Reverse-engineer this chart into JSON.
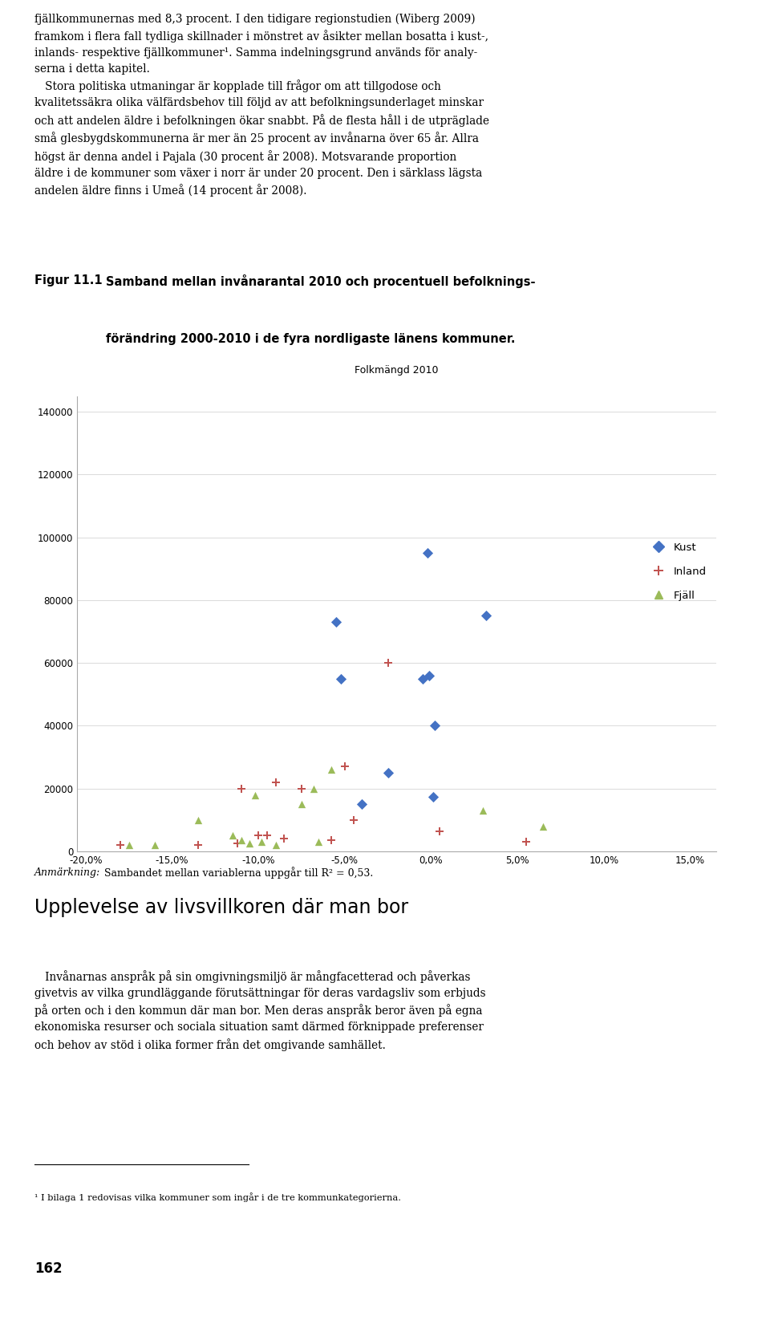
{
  "title_chart": "Folkmängd 2010",
  "fig_label": "Figur 11.1",
  "fig_caption_line1": "Samband mellan invånarantal 2010 och procentuell befolknings-",
  "fig_caption_line2": "förändring 2000-2010 i de fyra nordligaste länens kommuner.",
  "annotation_italic": "Anmärkning:",
  "annotation_normal": " Sambandet mellan variablerna uppgår till R² = 0,53.",
  "upper_text_lines": [
    "fjällkommunernas med 8,3 procent. I den tidigare regionstudien (Wiberg 2009)",
    "framkom i flera fall tydliga skillnader i mönstret av åsikter mellan bosatta i kust-,",
    "inlands- respektive fjällkommuner¹. Samma indelningsgrund används för analy-",
    "serna i detta kapitel.",
    "   Stora politiska utmaningar är kopplade till frågor om att tillgodose och",
    "kvalitetssäkra olika välfärdsbehov till följd av att befolkningsunderlaget minskar",
    "och att andelen äldre i befolkningen ökar snabbt. På de flesta håll i de utpräglade",
    "små glesbygdskommunerna är mer än 25 procent av invånarna över 65 år. Allra",
    "högst är denna andel i Pajala (30 procent år 2008). Motsvarande proportion",
    "äldre i de kommuner som växer i norr är under 20 procent. Den i särklass lägsta",
    "andelen äldre finns i Umeå (14 procent år 2008)."
  ],
  "bottom_heading": "Upplevelse av livsvillkoren där man bor",
  "bottom_body_lines": [
    "   Invånarnas anspråk på sin omgivningsmiljö är mångfacetterad och påverkas",
    "givetvis av vilka grundläggande förutsättningar för deras vardagsliv som erbjuds",
    "på orten och i den kommun där man bor. Men deras anspråk beror även på egna",
    "ekonomiska resurser och sociala situation samt därmed förknippade preferenser",
    "och behov av stöd i olika former från det omgivande samhället."
  ],
  "footnote": "¹ I bilaga 1 redovisas vilka kommuner som ingår i de tre kommunkategorierna.",
  "page_number": "162",
  "kust_x": [
    -5.5,
    -5.2,
    -2.5,
    -0.5,
    -0.2,
    0.1,
    0.2,
    3.2,
    -4.0,
    -0.1
  ],
  "kust_y": [
    73000,
    55000,
    25000,
    55000,
    95000,
    17500,
    40000,
    75000,
    15000,
    56000
  ],
  "inland_x": [
    -18.0,
    -13.5,
    -11.2,
    -11.0,
    -10.0,
    -9.5,
    -9.0,
    -8.5,
    -7.5,
    -5.8,
    -5.0,
    -4.5,
    -2.5,
    0.5,
    5.5
  ],
  "inland_y": [
    2000,
    2000,
    2500,
    20000,
    5000,
    5000,
    22000,
    4000,
    20000,
    3500,
    27000,
    10000,
    60000,
    6500,
    3000
  ],
  "fjall_x": [
    -17.5,
    -16.0,
    -13.5,
    -11.5,
    -11.0,
    -10.5,
    -10.2,
    -9.8,
    -9.0,
    -7.5,
    -6.8,
    -6.5,
    -5.8,
    3.0,
    6.5
  ],
  "fjall_y": [
    2000,
    2000,
    10000,
    5000,
    3500,
    2500,
    18000,
    3000,
    2000,
    15000,
    20000,
    3000,
    26000,
    13000,
    8000
  ],
  "kust_color": "#4472C4",
  "inland_color": "#C0504D",
  "fjall_color": "#9BBB59",
  "xlim": [
    -20.5,
    16.5
  ],
  "ylim": [
    0,
    145000
  ],
  "yticks": [
    0,
    20000,
    40000,
    60000,
    80000,
    100000,
    120000,
    140000
  ],
  "xticks": [
    -20,
    -15,
    -10,
    -5,
    0,
    5,
    10,
    15
  ]
}
